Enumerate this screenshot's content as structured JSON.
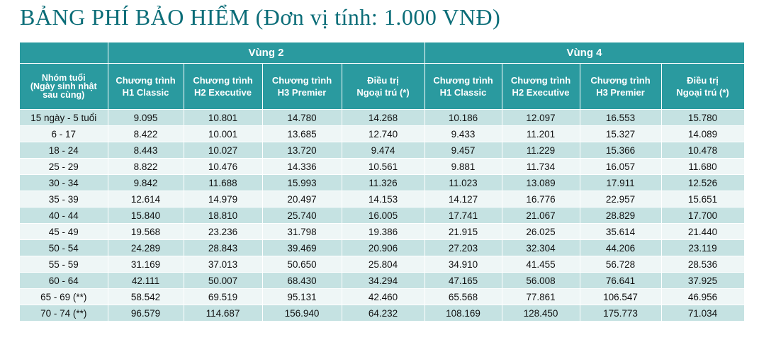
{
  "title": "BẢNG PHÍ BẢO HIỂM (Đơn vị tính: 1.000 VNĐ)",
  "zones": [
    "Vùng 2",
    "Vùng 4"
  ],
  "age_header": [
    "Nhóm tuổi",
    "(Ngày sinh nhật",
    "sau cùng)"
  ],
  "plan_headers": [
    [
      "Chương trình",
      "H1 Classic"
    ],
    [
      "Chương trình",
      "H2 Executive"
    ],
    [
      "Chương trình",
      "H3 Premier"
    ],
    [
      "Điều trị",
      "Ngoại trú (*)"
    ],
    [
      "Chương trình",
      "H1 Classic"
    ],
    [
      "Chương trình",
      "H2 Executive"
    ],
    [
      "Chương trình",
      "H3 Premier"
    ],
    [
      "Điều trị",
      "Ngoại trú (*)"
    ]
  ],
  "rows": [
    {
      "age": "15 ngày - 5 tuổi",
      "v": [
        "9.095",
        "10.801",
        "14.780",
        "14.268",
        "10.186",
        "12.097",
        "16.553",
        "15.780"
      ]
    },
    {
      "age": "6 - 17",
      "v": [
        "8.422",
        "10.001",
        "13.685",
        "12.740",
        "9.433",
        "11.201",
        "15.327",
        "14.089"
      ]
    },
    {
      "age": "18 - 24",
      "v": [
        "8.443",
        "10.027",
        "13.720",
        "9.474",
        "9.457",
        "11.229",
        "15.366",
        "10.478"
      ]
    },
    {
      "age": "25 - 29",
      "v": [
        "8.822",
        "10.476",
        "14.336",
        "10.561",
        "9.881",
        "11.734",
        "16.057",
        "11.680"
      ]
    },
    {
      "age": "30 - 34",
      "v": [
        "9.842",
        "11.688",
        "15.993",
        "11.326",
        "11.023",
        "13.089",
        "17.911",
        "12.526"
      ]
    },
    {
      "age": "35 - 39",
      "v": [
        "12.614",
        "14.979",
        "20.497",
        "14.153",
        "14.127",
        "16.776",
        "22.957",
        "15.651"
      ]
    },
    {
      "age": "40 - 44",
      "v": [
        "15.840",
        "18.810",
        "25.740",
        "16.005",
        "17.741",
        "21.067",
        "28.829",
        "17.700"
      ]
    },
    {
      "age": "45 - 49",
      "v": [
        "19.568",
        "23.236",
        "31.798",
        "19.386",
        "21.915",
        "26.025",
        "35.614",
        "21.440"
      ]
    },
    {
      "age": "50 - 54",
      "v": [
        "24.289",
        "28.843",
        "39.469",
        "20.906",
        "27.203",
        "32.304",
        "44.206",
        "23.119"
      ]
    },
    {
      "age": "55 - 59",
      "v": [
        "31.169",
        "37.013",
        "50.650",
        "25.804",
        "34.910",
        "41.455",
        "56.728",
        "28.536"
      ]
    },
    {
      "age": "60 - 64",
      "v": [
        "42.111",
        "50.007",
        "68.430",
        "34.294",
        "47.165",
        "56.008",
        "76.641",
        "37.925"
      ]
    },
    {
      "age": "65 - 69 (**)",
      "v": [
        "58.542",
        "69.519",
        "95.131",
        "42.460",
        "65.568",
        "77.861",
        "106.547",
        "46.956"
      ]
    },
    {
      "age": "70 - 74 (**)",
      "v": [
        "96.579",
        "114.687",
        "156.940",
        "64.232",
        "108.169",
        "128.450",
        "175.773",
        "71.034"
      ]
    }
  ],
  "colors": {
    "title": "#0b6d78",
    "header_bg": "#2a9a9f",
    "row_odd": "#c5e2e2",
    "row_even": "#eef6f6"
  }
}
